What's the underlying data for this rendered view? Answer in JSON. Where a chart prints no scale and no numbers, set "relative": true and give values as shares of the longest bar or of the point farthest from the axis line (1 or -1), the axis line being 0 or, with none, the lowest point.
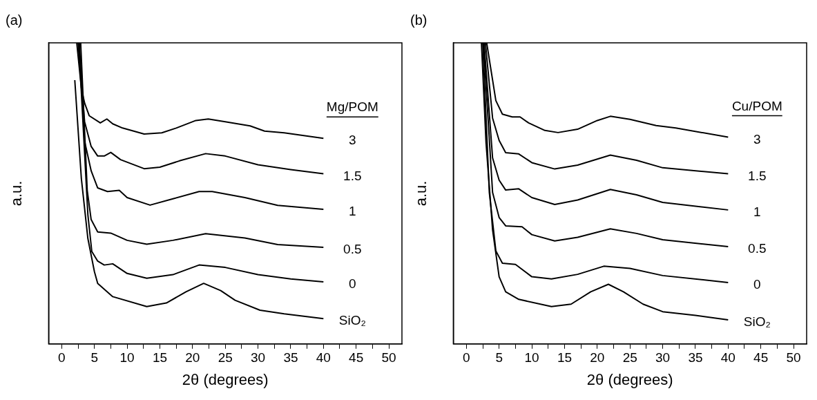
{
  "chart_data": [
    {
      "type": "line",
      "title": "(a)",
      "xlabel": "2θ (degrees)",
      "ylabel": "a.u.",
      "legend_title": "Mg/POM",
      "relative": true,
      "legend": false,
      "grid": false,
      "marker": "none",
      "line_style": "solid",
      "xlim": [
        -2,
        52
      ],
      "xticks": [
        0,
        {
          "value": 2.5,
          "label": null
        },
        5,
        {
          "value": 7.5,
          "label": null
        },
        10,
        {
          "value": 12.5,
          "label": null
        },
        15,
        {
          "value": 17.5,
          "label": null
        },
        20,
        {
          "value": 22.5,
          "label": null
        },
        25,
        {
          "value": 27.5,
          "label": null
        },
        30,
        {
          "value": 32.5,
          "label": null
        },
        35,
        {
          "value": 37.5,
          "label": null
        },
        40,
        {
          "value": 42.5,
          "label": null
        },
        45,
        {
          "value": 47.5,
          "label": null
        },
        50
      ],
      "series": [
        {
          "name": "3",
          "color": "#000000",
          "x": [
            2.3,
            3.0,
            3.5,
            4.2,
            5.9,
            6.9,
            7.8,
            9.3,
            12.6,
            15.3,
            17.5,
            20.5,
            22.4,
            25,
            28.8,
            31,
            34,
            40
          ],
          "values": [
            1.0,
            0.85,
            0.8,
            0.758,
            0.734,
            0.747,
            0.731,
            0.717,
            0.697,
            0.701,
            0.717,
            0.742,
            0.747,
            0.738,
            0.724,
            0.707,
            0.701,
            0.683
          ]
        },
        {
          "name": "1.5",
          "color": "#000000",
          "x": [
            2.5,
            3.5,
            4.5,
            5.5,
            6.5,
            7.5,
            9,
            12.6,
            15,
            18,
            22,
            25,
            30,
            35,
            40
          ],
          "values": [
            1.0,
            0.738,
            0.656,
            0.624,
            0.624,
            0.636,
            0.612,
            0.582,
            0.587,
            0.608,
            0.632,
            0.624,
            0.595,
            0.579,
            0.565
          ]
        },
        {
          "name": "1",
          "color": "#000000",
          "x": [
            2.7,
            3.5,
            4.5,
            5.5,
            7,
            8.8,
            10,
            13.5,
            17,
            21,
            23,
            28,
            33,
            40
          ],
          "values": [
            1.0,
            0.673,
            0.575,
            0.518,
            0.506,
            0.51,
            0.486,
            0.461,
            0.482,
            0.506,
            0.506,
            0.486,
            0.46,
            0.447
          ]
        },
        {
          "name": "0.5",
          "color": "#000000",
          "x": [
            2.9,
            3.9,
            4.5,
            5.5,
            7.5,
            10,
            13,
            17,
            22,
            28,
            33,
            40
          ],
          "values": [
            1.0,
            0.51,
            0.413,
            0.372,
            0.368,
            0.344,
            0.331,
            0.344,
            0.366,
            0.352,
            0.33,
            0.321
          ]
        },
        {
          "name": "0",
          "color": "#000000",
          "x": [
            2.6,
            4.0,
            4.6,
            5.5,
            6.5,
            7.8,
            10,
            13,
            17,
            21,
            25,
            30,
            35,
            40
          ],
          "values": [
            1.0,
            0.429,
            0.307,
            0.275,
            0.262,
            0.266,
            0.234,
            0.218,
            0.23,
            0.262,
            0.254,
            0.23,
            0.216,
            0.206
          ]
        },
        {
          "name": "SiO₂",
          "color": "#000000",
          "x": [
            2.0,
            3.0,
            4.0,
            5.0,
            5.5,
            7.8,
            13,
            16,
            19,
            21.7,
            24.3,
            26.5,
            30.3,
            34,
            40
          ],
          "values": [
            0.876,
            0.55,
            0.35,
            0.24,
            0.201,
            0.157,
            0.124,
            0.136,
            0.173,
            0.201,
            0.177,
            0.145,
            0.112,
            0.1,
            0.084
          ]
        }
      ]
    },
    {
      "type": "line",
      "title": "(b)",
      "xlabel": "2θ (degrees)",
      "ylabel": "a.u.",
      "legend_title": "Cu/POM",
      "relative": true,
      "legend": false,
      "grid": false,
      "marker": "none",
      "line_style": "solid",
      "xlim": [
        -2,
        52
      ],
      "xticks": [
        0,
        {
          "value": 2.5,
          "label": null
        },
        5,
        {
          "value": 7.5,
          "label": null
        },
        10,
        {
          "value": 12.5,
          "label": null
        },
        15,
        {
          "value": 17.5,
          "label": null
        },
        20,
        {
          "value": 22.5,
          "label": null
        },
        25,
        {
          "value": 27.5,
          "label": null
        },
        30,
        {
          "value": 32.5,
          "label": null
        },
        35,
        {
          "value": 37.5,
          "label": null
        },
        40,
        {
          "value": 42.5,
          "label": null
        },
        45,
        {
          "value": 47.5,
          "label": null
        },
        50
      ],
      "series": [
        {
          "name": "3",
          "color": "#000000",
          "x": [
            3.1,
            4.5,
            5.5,
            7,
            8.2,
            9.5,
            12,
            14,
            17,
            20,
            22,
            25,
            29,
            32,
            40
          ],
          "values": [
            1.0,
            0.808,
            0.763,
            0.754,
            0.754,
            0.734,
            0.709,
            0.702,
            0.713,
            0.742,
            0.756,
            0.746,
            0.725,
            0.717,
            0.687
          ]
        },
        {
          "name": "1.5",
          "color": "#000000",
          "x": [
            2.9,
            4,
            5,
            6,
            8,
            10,
            13.5,
            17,
            22,
            26,
            30,
            40
          ],
          "values": [
            1.0,
            0.75,
            0.676,
            0.635,
            0.631,
            0.602,
            0.581,
            0.594,
            0.627,
            0.61,
            0.585,
            0.565
          ]
        },
        {
          "name": "1",
          "color": "#000000",
          "x": [
            2.7,
            4,
            5,
            6,
            8,
            10,
            13.5,
            17,
            22,
            26,
            30,
            40
          ],
          "values": [
            1.0,
            0.618,
            0.544,
            0.511,
            0.515,
            0.486,
            0.463,
            0.478,
            0.513,
            0.495,
            0.47,
            0.445
          ]
        },
        {
          "name": "0.5",
          "color": "#000000",
          "x": [
            2.6,
            4,
            5,
            6,
            8.5,
            10,
            13.5,
            17,
            22,
            26,
            30,
            40
          ],
          "values": [
            1.0,
            0.503,
            0.42,
            0.392,
            0.389,
            0.363,
            0.342,
            0.354,
            0.382,
            0.367,
            0.346,
            0.323
          ]
        },
        {
          "name": "0",
          "color": "#000000",
          "x": [
            2.5,
            3.5,
            4.5,
            5.5,
            7.5,
            10,
            13,
            17,
            21,
            25,
            30,
            40
          ],
          "values": [
            1.0,
            0.503,
            0.309,
            0.268,
            0.264,
            0.223,
            0.216,
            0.231,
            0.258,
            0.251,
            0.227,
            0.204
          ]
        },
        {
          "name": "SiO₂",
          "color": "#000000",
          "x": [
            2.3,
            3,
            4,
            5,
            6,
            8,
            13,
            16,
            19,
            21.7,
            24,
            27,
            30,
            35,
            40
          ],
          "values": [
            1.0,
            0.668,
            0.379,
            0.223,
            0.173,
            0.148,
            0.124,
            0.132,
            0.173,
            0.198,
            0.173,
            0.132,
            0.107,
            0.095,
            0.08
          ]
        }
      ]
    }
  ]
}
